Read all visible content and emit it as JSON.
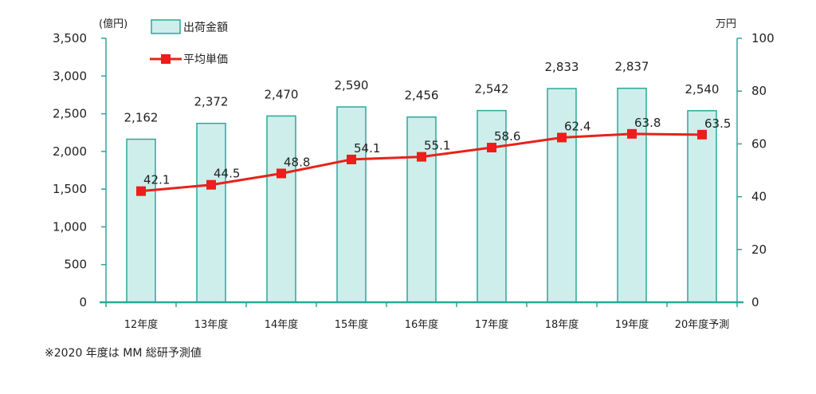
{
  "chart_data": {
    "type": "bar",
    "categories": [
      "12年度",
      "13年度",
      "14年度",
      "15年度",
      "16年度",
      "17年度",
      "18年度",
      "19年度",
      "20年度予測"
    ],
    "series": [
      {
        "name": "出荷金額",
        "type": "bar",
        "axis": "left",
        "values": [
          2162,
          2372,
          2470,
          2590,
          2456,
          2542,
          2833,
          2837,
          2540
        ]
      },
      {
        "name": "平均単価",
        "type": "line",
        "axis": "right",
        "values": [
          42.1,
          44.5,
          48.8,
          54.1,
          55.1,
          58.6,
          62.4,
          63.8,
          63.5
        ]
      }
    ],
    "bar_labels": [
      "2,162",
      "2,372",
      "2,470",
      "2,590",
      "2,456",
      "2,542",
      "2,833",
      "2,837",
      "2,540"
    ],
    "line_labels": [
      "42.1",
      "44.5",
      "48.8",
      "54.1",
      "55.1",
      "58.6",
      "62.4",
      "63.8",
      "63.5"
    ],
    "ylabel": "(億円)",
    "y2label": "万円",
    "ylim": [
      0,
      3500
    ],
    "y2lim": [
      0,
      100
    ],
    "yticks": [
      "0",
      "500",
      "1,000",
      "1,500",
      "2,000",
      "2,500",
      "3,000",
      "3,500"
    ],
    "y2ticks": [
      "0",
      "20",
      "40",
      "60",
      "80",
      "100"
    ],
    "grid": false,
    "legend": "top-left",
    "colors": {
      "bar_fill": "#cdeeea",
      "bar_stroke": "#2aa89a",
      "line": "#e8221a",
      "marker": "#ee1c1c",
      "axis": "#2aa89a"
    }
  },
  "footnote": "※2020 年度は MM 総研予測値"
}
